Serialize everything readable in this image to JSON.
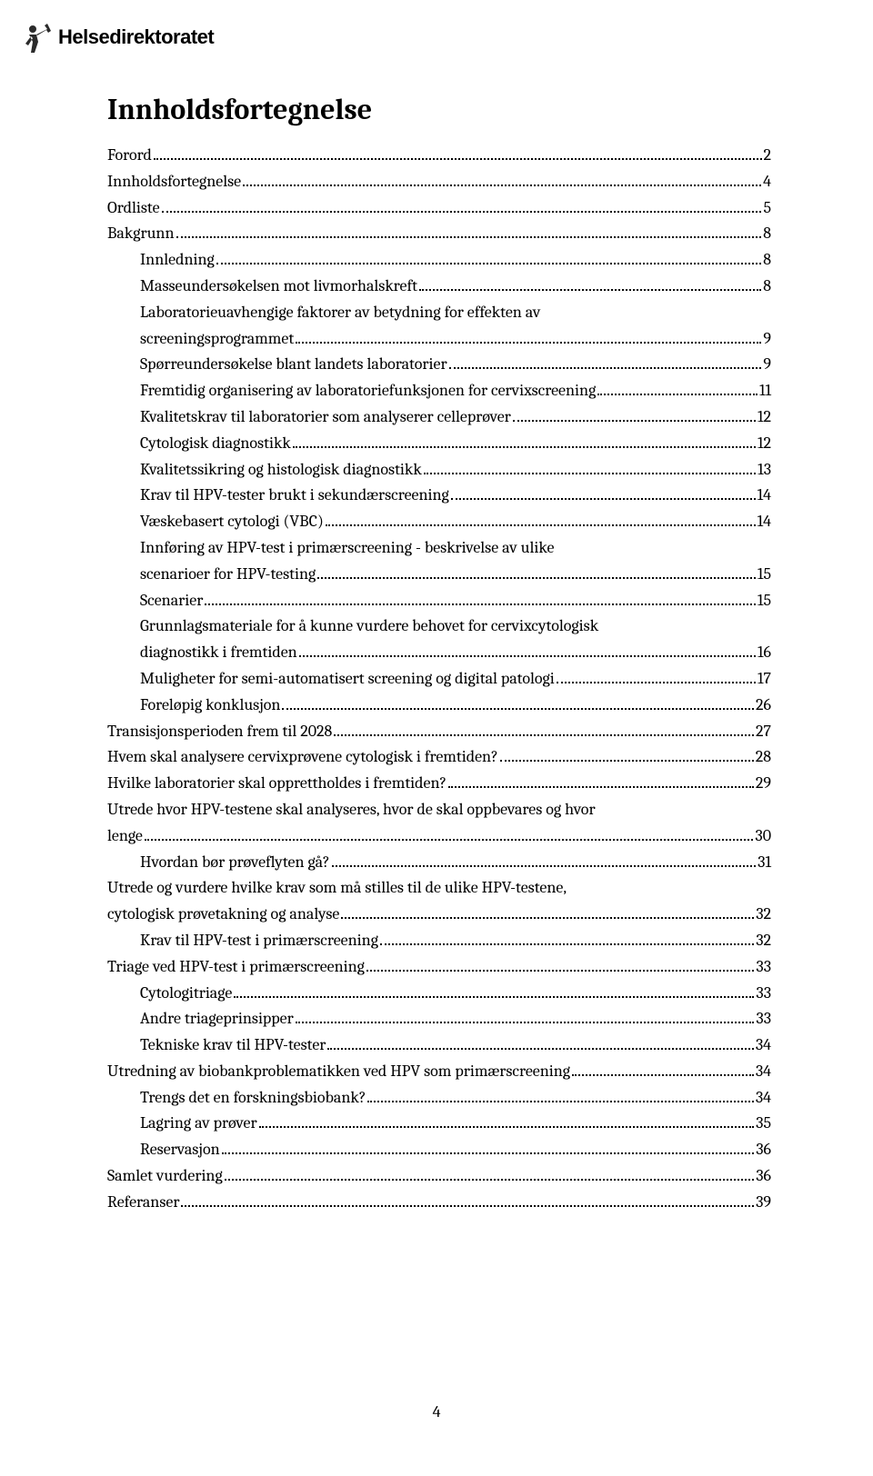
{
  "logo": {
    "text": "Helsedirektoratet",
    "icon_color": "#2b2b2b"
  },
  "heading": "Innholdsfortegnelse",
  "page_number": "4",
  "colors": {
    "background": "#ffffff",
    "text": "#000000"
  },
  "toc": [
    {
      "label": "Forord",
      "page": "2",
      "indent": 0
    },
    {
      "label": "Innholdsfortegnelse",
      "page": "4",
      "indent": 0
    },
    {
      "label": "Ordliste",
      "page": "5",
      "indent": 0
    },
    {
      "label": "Bakgrunn",
      "page": "8",
      "indent": 0
    },
    {
      "label": "Innledning",
      "page": "8",
      "indent": 1
    },
    {
      "label": "Masseundersøkelsen mot livmorhalskreft",
      "page": "8",
      "indent": 1
    },
    {
      "label": "Laboratorieuavhengige faktorer av betydning for effekten av screeningsprogrammet",
      "page": "9",
      "indent": 1
    },
    {
      "label": "Spørreundersøkelse blant landets laboratorier",
      "page": "9",
      "indent": 1
    },
    {
      "label": "Fremtidig organisering av laboratoriefunksjonen for cervixscreening",
      "page": "11",
      "indent": 1
    },
    {
      "label": "Kvalitetskrav til laboratorier som analyserer celleprøver",
      "page": "12",
      "indent": 1
    },
    {
      "label": "Cytologisk diagnostikk",
      "page": "12",
      "indent": 1
    },
    {
      "label": "Kvalitetssikring og histologisk diagnostikk",
      "page": "13",
      "indent": 1
    },
    {
      "label": "Krav til HPV-tester brukt i sekundærscreening",
      "page": "14",
      "indent": 1
    },
    {
      "label": "Væskebasert cytologi (VBC)",
      "page": "14",
      "indent": 1
    },
    {
      "label": "Innføring av HPV-test i primærscreening - beskrivelse av ulike scenarioer for HPV-testing",
      "page": "15",
      "indent": 1
    },
    {
      "label": "Scenarier",
      "page": "15",
      "indent": 1
    },
    {
      "label": "Grunnlagsmateriale for å kunne vurdere behovet for cervixcytologisk diagnostikk i fremtiden",
      "page": "16",
      "indent": 1
    },
    {
      "label": "Muligheter for semi-automatisert screening og digital patologi",
      "page": "17",
      "indent": 1
    },
    {
      "label": "Foreløpig konklusjon",
      "page": "26",
      "indent": 1
    },
    {
      "label": "Transisjonsperioden frem til 2028",
      "page": "27",
      "indent": 0
    },
    {
      "label": "Hvem skal analysere cervixprøvene cytologisk i fremtiden?",
      "page": "28",
      "indent": 0
    },
    {
      "label": "Hvilke laboratorier skal opprettholdes i fremtiden?",
      "page": "29",
      "indent": 0
    },
    {
      "label": "Utrede hvor HPV-testene skal analyseres, hvor de skal oppbevares og hvor lenge",
      "page": "30",
      "indent": 0
    },
    {
      "label": "Hvordan bør prøveflyten gå?",
      "page": "31",
      "indent": 1
    },
    {
      "label": "Utrede og vurdere hvilke krav som må stilles til de ulike HPV-testene, cytologisk prøvetakning og analyse",
      "page": "32",
      "indent": 0
    },
    {
      "label": "Krav til HPV-test i primærscreening",
      "page": "32",
      "indent": 1
    },
    {
      "label": "Triage ved HPV-test i primærscreening",
      "page": "33",
      "indent": 0
    },
    {
      "label": "Cytologitriage",
      "page": "33",
      "indent": 1
    },
    {
      "label": "Andre triageprinsipper",
      "page": "33",
      "indent": 1
    },
    {
      "label": "Tekniske krav til HPV-tester",
      "page": "34",
      "indent": 1
    },
    {
      "label": "Utredning av biobankproblematikken ved HPV som primærscreening",
      "page": "34",
      "indent": 0
    },
    {
      "label": "Trengs det en forskningsbiobank?",
      "page": "34",
      "indent": 1
    },
    {
      "label": "Lagring av prøver",
      "page": "35",
      "indent": 1
    },
    {
      "label": "Reservasjon",
      "page": "36",
      "indent": 1
    },
    {
      "label": "Samlet vurdering",
      "page": "36",
      "indent": 0
    },
    {
      "label": "Referanser",
      "page": "39",
      "indent": 0
    }
  ]
}
